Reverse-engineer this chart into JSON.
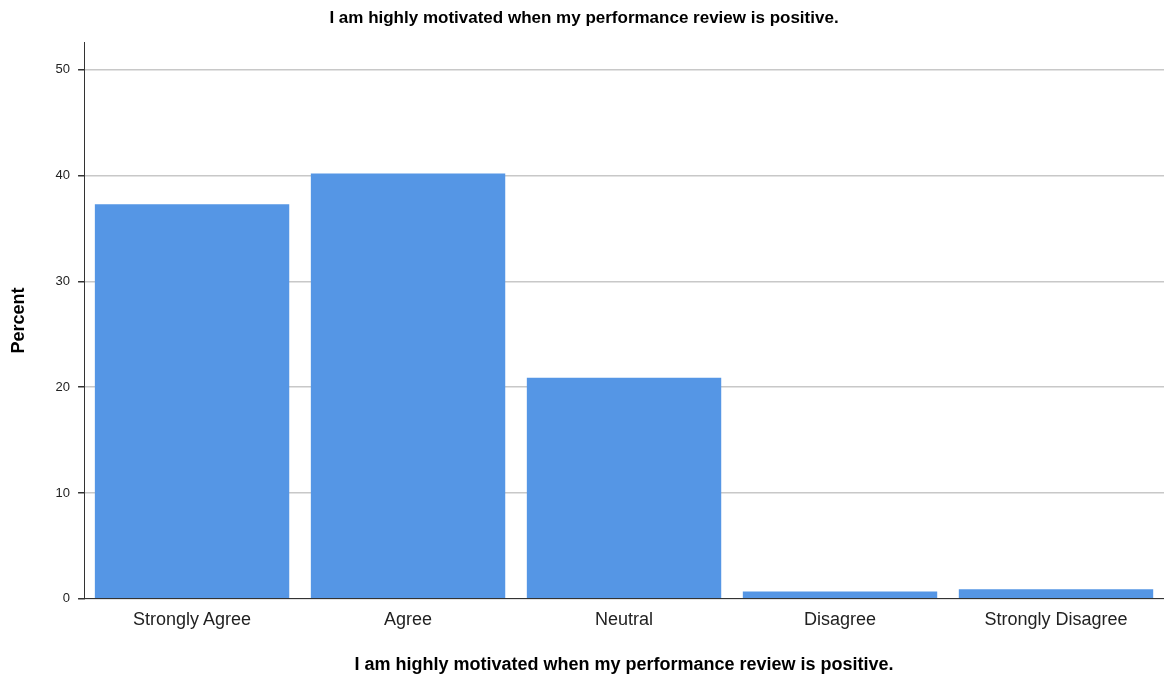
{
  "chart_data": {
    "type": "bar",
    "title": "I am highly motivated when my performance review is positive.",
    "xlabel": "I am highly motivated when my performance review is positive.",
    "ylabel": "Percent",
    "categories": [
      "Strongly Agree",
      "Agree",
      "Neutral",
      "Disagree",
      "Strongly Disagree"
    ],
    "values": [
      37.3,
      40.2,
      20.9,
      0.7,
      0.9
    ],
    "color": "#5596e5",
    "ylim": [
      0,
      52.6
    ],
    "yticks": [
      0,
      10,
      20,
      30,
      40,
      50
    ],
    "grid": "y",
    "legend": false
  }
}
